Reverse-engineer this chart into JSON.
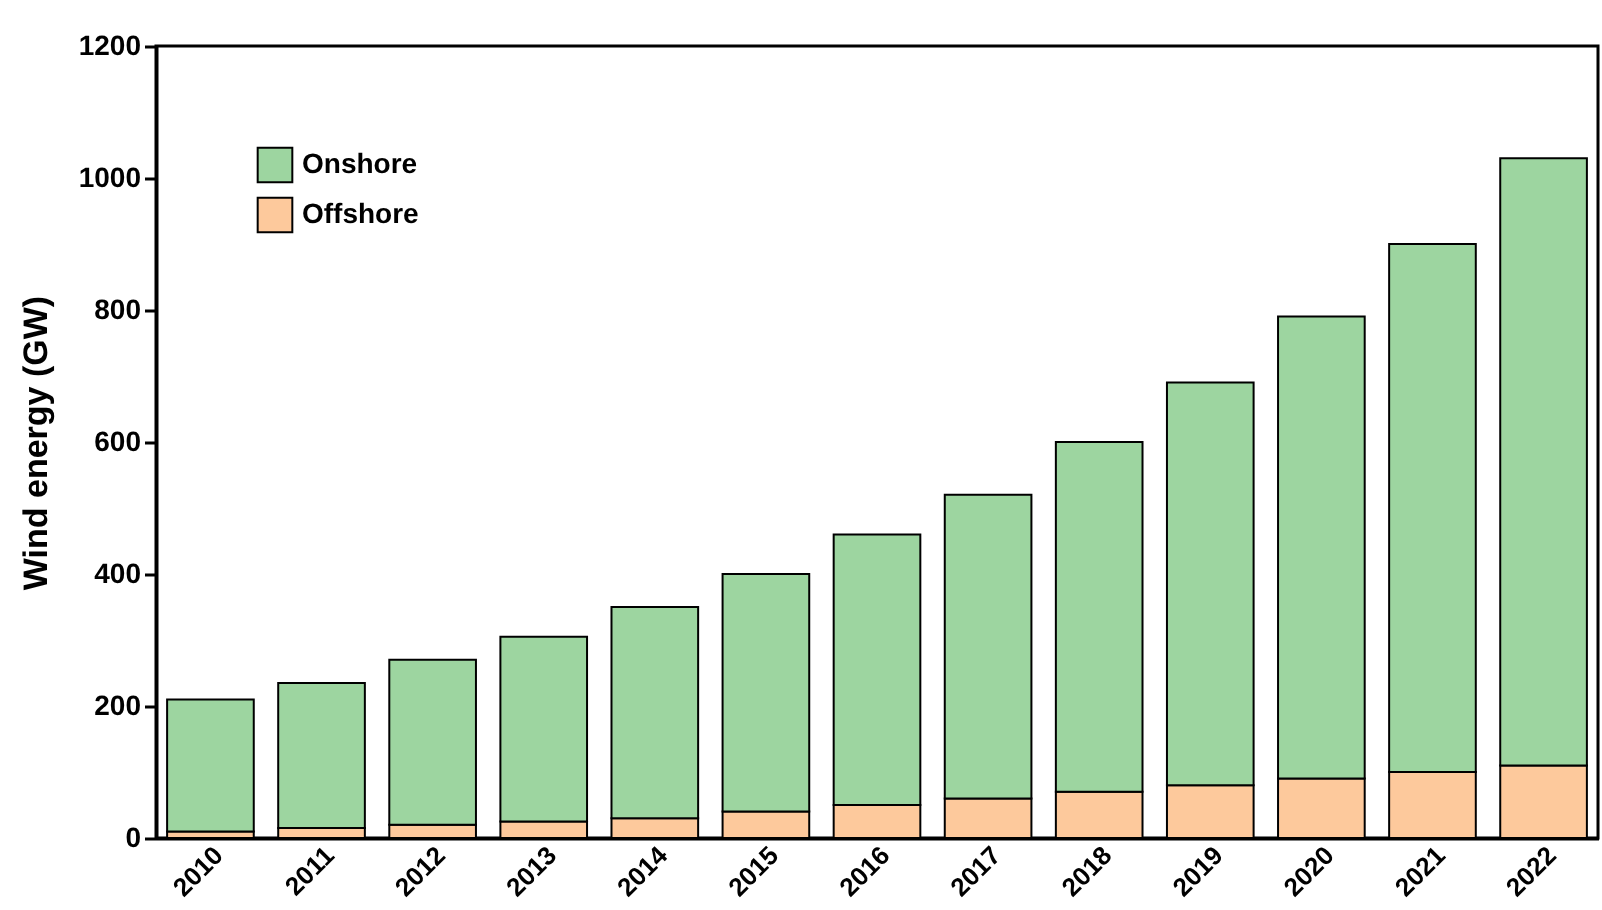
{
  "chart_data": {
    "type": "bar",
    "ylabel": "Wind energy (GW)",
    "stacked": true,
    "categories": [
      "2010",
      "2011",
      "2012",
      "2013",
      "2014",
      "2015",
      "2016",
      "2017",
      "2018",
      "2019",
      "2020",
      "2021",
      "2022"
    ],
    "series": [
      {
        "name": "Offshore",
        "color": "#fdc99c",
        "values": [
          10,
          15,
          20,
          25,
          30,
          40,
          50,
          60,
          70,
          80,
          90,
          100,
          110
        ]
      },
      {
        "name": "Onshore",
        "color": "#9dd5a0",
        "values": [
          200,
          220,
          250,
          280,
          320,
          360,
          410,
          460,
          530,
          610,
          700,
          800,
          920
        ]
      }
    ],
    "ylim": [
      0,
      1200
    ],
    "yticks": [
      0,
      200,
      400,
      600,
      800,
      1000,
      1200
    ],
    "grid": false,
    "legend": "top left"
  }
}
